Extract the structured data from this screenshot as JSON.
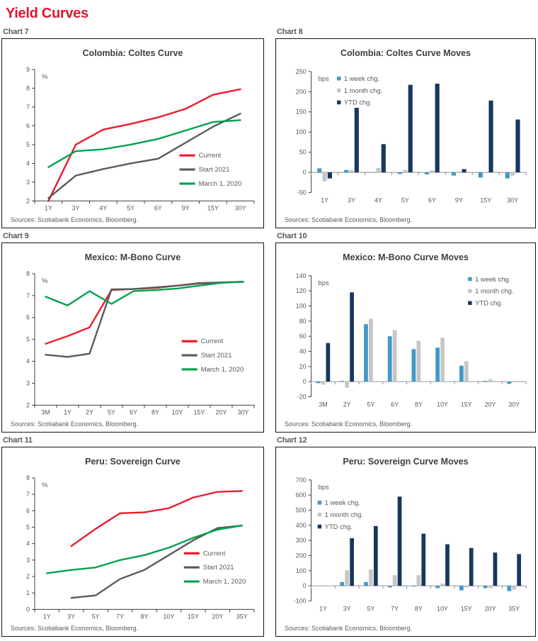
{
  "header": {
    "title": "Yield Curves"
  },
  "colors": {
    "accent_red": "#E0162D",
    "title_text": "#3F3F3F",
    "axis_text": "#595959",
    "current": "#EB1C2D",
    "start2021": "#595A5C",
    "march2020": "#00A14D",
    "week": "#4398CB",
    "month": "#C6C6C6",
    "ytd": "#17375E"
  },
  "chart_data": [
    {
      "type": "line",
      "label": "Chart 7",
      "title": "Colombia: Coltes Curve",
      "unit": "%",
      "sources": "Sources: Scotiabank Economics, Bloomberg.",
      "categories": [
        "1Y",
        "3Y",
        "4Y",
        "5Y",
        "6Y",
        "9Y",
        "15Y",
        "30Y"
      ],
      "series": [
        {
          "name": "Current",
          "values": [
            2.0,
            5.0,
            5.8,
            6.1,
            6.45,
            6.9,
            7.65,
            7.95
          ]
        },
        {
          "name": "Start 2021",
          "values": [
            2.15,
            3.35,
            3.7,
            4.0,
            4.25,
            5.1,
            5.95,
            6.65
          ]
        },
        {
          "name": "March 1, 2020",
          "values": [
            3.8,
            4.65,
            4.75,
            5.0,
            5.3,
            5.75,
            6.2,
            6.3
          ]
        }
      ],
      "ylim": [
        2,
        9
      ],
      "ystep": 1,
      "grid": false,
      "legend": {
        "position": "inside-right",
        "fx": 0.66,
        "fy": 0.67
      }
    },
    {
      "type": "bar",
      "label": "Chart 8",
      "title": "Colombia: Coltes Curve Moves",
      "unit": "bps",
      "sources": "Sources: Scotiabank Economics, Bloomberg.",
      "categories": [
        "1Y",
        "3Y",
        "4Y",
        "5Y",
        "6Y",
        "9Y",
        "15Y",
        "30Y"
      ],
      "series": [
        {
          "name": "1 week chg.",
          "values": [
            10,
            6,
            1,
            -4,
            -5,
            -8,
            -13,
            -15
          ]
        },
        {
          "name": "1 month chg.",
          "values": [
            -22,
            6,
            11,
            6,
            5,
            2,
            0,
            -8
          ]
        },
        {
          "name": "YTD chg.",
          "values": [
            -15,
            160,
            70,
            217,
            220,
            8,
            178,
            131
          ]
        }
      ],
      "ylim": [
        -50,
        250
      ],
      "ystep": 50,
      "grid": false,
      "legend": {
        "position": "inside-top-left",
        "fx": 0.12,
        "fy": 0.03
      }
    },
    {
      "type": "line",
      "label": "Chart 9",
      "title": "Mexico: M-Bono Curve",
      "unit": "%",
      "sources": "Sources: Scotiabank Economics, Bloomberg.",
      "categories": [
        "3M",
        "1Y",
        "2Y",
        "5Y",
        "6Y",
        "8Y",
        "10Y",
        "15Y",
        "20Y",
        "30Y"
      ],
      "series": [
        {
          "name": "Current",
          "values": [
            4.8,
            5.15,
            5.55,
            7.25,
            7.3,
            7.35,
            7.45,
            7.55,
            7.6,
            7.62
          ]
        },
        {
          "name": "Start 2021",
          "values": [
            4.3,
            4.2,
            4.35,
            7.28,
            7.3,
            7.37,
            7.45,
            7.57,
            7.6,
            7.63
          ]
        },
        {
          "name": "March 1, 2020",
          "values": [
            6.95,
            6.55,
            7.2,
            6.62,
            7.2,
            7.25,
            7.32,
            7.45,
            7.58,
            7.63
          ]
        }
      ],
      "ylim": [
        2,
        8
      ],
      "ystep": 1,
      "grid": false,
      "legend": {
        "position": "inside-right",
        "fx": 0.67,
        "fy": 0.53
      }
    },
    {
      "type": "bar",
      "label": "Chart 10",
      "title": "Mexico: M-Bono Curve Moves",
      "unit": "bps",
      "sources": "Sources: Scotiabank Economics, Bloomberg.",
      "categories": [
        "3M",
        "2Y",
        "5Y",
        "6Y",
        "8Y",
        "10Y",
        "15Y",
        "20Y",
        "30Y"
      ],
      "series": [
        {
          "name": "1 week chg.",
          "values": [
            -2,
            1,
            76,
            60,
            43,
            45,
            21,
            1,
            -3
          ]
        },
        {
          "name": "1 month chg.",
          "values": [
            -4,
            -8,
            83,
            68,
            54,
            58,
            27,
            3,
            1
          ]
        },
        {
          "name": "YTD chg.",
          "values": [
            51,
            118,
            0,
            0,
            0,
            0,
            0,
            0,
            0
          ]
        }
      ],
      "ylim": [
        -20,
        140
      ],
      "ystep": 20,
      "grid": false,
      "legend": {
        "position": "inside-top-right",
        "fx": 0.73,
        "fy": 0.0
      }
    },
    {
      "type": "line",
      "label": "Chart 11",
      "title": "Peru: Sovereign Curve",
      "unit": "%",
      "sources": "Sources: Scotiabank Economics, Bloomberg.",
      "categories": [
        "1Y",
        "3Y",
        "5Y",
        "7Y",
        "8Y",
        "10Y",
        "15Y",
        "20Y",
        "35Y"
      ],
      "series": [
        {
          "name": "Current",
          "values": [
            null,
            3.85,
            4.9,
            5.85,
            5.9,
            6.15,
            6.8,
            7.15,
            7.2
          ]
        },
        {
          "name": "Start 2021",
          "values": [
            null,
            0.7,
            0.85,
            1.85,
            2.4,
            3.3,
            4.2,
            4.95,
            5.1
          ]
        },
        {
          "name": "March 1, 2020",
          "values": [
            2.2,
            2.4,
            2.55,
            3.0,
            3.3,
            3.75,
            4.35,
            4.85,
            5.1
          ]
        }
      ],
      "ylim": [
        0,
        8
      ],
      "ystep": 1,
      "grid": false,
      "legend": {
        "position": "inside-right",
        "fx": 0.68,
        "fy": 0.59
      }
    },
    {
      "type": "bar",
      "label": "Chart 12",
      "title": "Peru: Sovereign Curve Moves",
      "unit": "bps",
      "sources": "Sources: Scotiabank Economics, Bloomberg.",
      "categories": [
        "1Y",
        "3Y",
        "5Y",
        "7Y",
        "8Y",
        "10Y",
        "15Y",
        "20Y",
        "35Y"
      ],
      "series": [
        {
          "name": "1 week chg.",
          "values": [
            0,
            25,
            25,
            -10,
            -5,
            -15,
            -30,
            -15,
            -35
          ]
        },
        {
          "name": "1 month chg.",
          "values": [
            0,
            103,
            108,
            70,
            70,
            15,
            -10,
            -15,
            -25
          ]
        },
        {
          "name": "YTD chg.",
          "values": [
            0,
            315,
            395,
            590,
            345,
            275,
            250,
            220,
            210
          ]
        }
      ],
      "ylim": [
        -100,
        700
      ],
      "ystep": 100,
      "grid": false,
      "legend": {
        "position": "inside-left",
        "fx": 0.03,
        "fy": 0.16
      }
    }
  ]
}
